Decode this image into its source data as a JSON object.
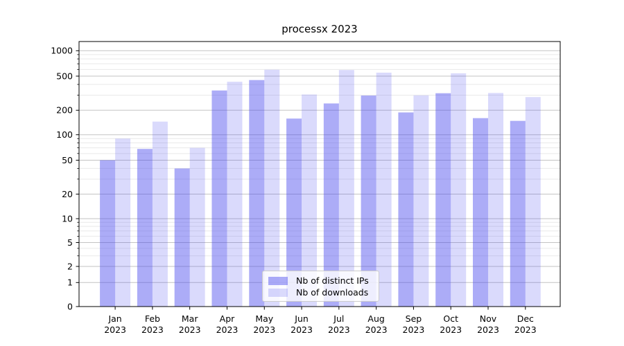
{
  "chart_data": {
    "type": "bar",
    "title": "processx 2023",
    "categories": [
      "Jan",
      "Feb",
      "Mar",
      "Apr",
      "May",
      "Jun",
      "Jul",
      "Aug",
      "Sep",
      "Oct",
      "Nov",
      "Dec"
    ],
    "category_year": "2023",
    "series": [
      {
        "name": "Nb of distinct IPs",
        "color": "rgba(70,70,238,0.45)",
        "values": [
          50,
          68,
          40,
          340,
          450,
          158,
          240,
          297,
          188,
          316,
          160,
          148
        ]
      },
      {
        "name": "Nb of downloads",
        "color": "rgba(70,70,238,0.20)",
        "values": [
          90,
          145,
          70,
          430,
          595,
          305,
          590,
          550,
          298,
          540,
          318,
          285
        ]
      }
    ],
    "xlabel": "",
    "ylabel": "",
    "y_axis": {
      "scale": "symlog",
      "ticks": [
        0,
        1,
        2,
        5,
        10,
        20,
        50,
        100,
        200,
        500,
        1000
      ],
      "minor_ticks": [
        3,
        4,
        6,
        7,
        8,
        9,
        30,
        40,
        60,
        70,
        80,
        90,
        300,
        400,
        600,
        700,
        800,
        900
      ],
      "range": [
        0,
        1300
      ]
    },
    "grid": "both",
    "legend_position": "lower center"
  },
  "colors": {
    "background": "#ffffff",
    "bar_distinct_ips": "rgba(70,70,238,0.45)",
    "bar_downloads": "rgba(70,70,238,0.20)",
    "grid_major": "#c3c3c3",
    "grid_minor": "#e9e9e9",
    "axis": "#000000",
    "text": "#000000",
    "legend_border": "#cccccc"
  }
}
